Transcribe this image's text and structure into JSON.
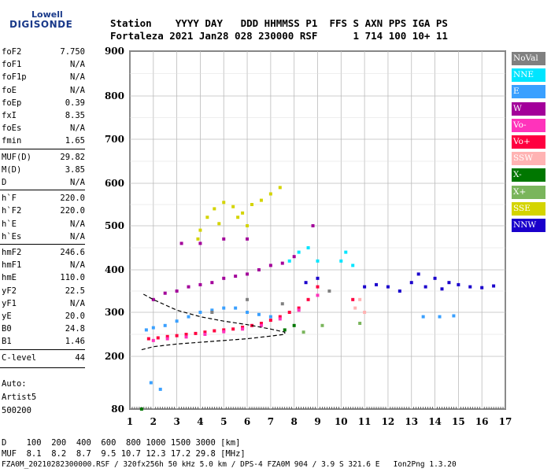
{
  "logo": {
    "top": "Lowell",
    "main": "DIGISONDE"
  },
  "header": {
    "line1": "Station    YYYY DAY   DDD HHMMSS P1  FFS S AXN PPS IGA PS",
    "line2": "Fortaleza 2021 Jan28 028 230000 RSF      1 714 100 10+ 11"
  },
  "params": [
    {
      "name": "foF2",
      "value": "7.750"
    },
    {
      "name": "foF1",
      "value": "N/A"
    },
    {
      "name": "foF1p",
      "value": "N/A"
    },
    {
      "name": "foE",
      "value": "N/A"
    },
    {
      "name": "foEp",
      "value": "0.39"
    },
    {
      "name": "fxI",
      "value": "8.35"
    },
    {
      "name": "foEs",
      "value": "N/A"
    },
    {
      "name": "fmin",
      "value": "1.65"
    },
    {
      "name": "MUF(D)",
      "value": "29.82"
    },
    {
      "name": "M(D)",
      "value": "3.85"
    },
    {
      "name": "D",
      "value": "N/A"
    },
    {
      "name": "h`F",
      "value": "220.0"
    },
    {
      "name": "h`F2",
      "value": "220.0"
    },
    {
      "name": "h`E",
      "value": "N/A"
    },
    {
      "name": "h`Es",
      "value": "N/A"
    },
    {
      "name": "hmF2",
      "value": "246.6"
    },
    {
      "name": "hmF1",
      "value": "N/A"
    },
    {
      "name": "hmE",
      "value": "110.0"
    },
    {
      "name": "yF2",
      "value": "22.5"
    },
    {
      "name": "yF1",
      "value": "N/A"
    },
    {
      "name": "yE",
      "value": "20.0"
    },
    {
      "name": "B0",
      "value": "24.8"
    },
    {
      "name": "B1",
      "value": "1.46"
    },
    {
      "name": "C-level",
      "value": "44"
    }
  ],
  "autoscale": {
    "line1": "Auto:",
    "line2": "Artist5",
    "line3": "500200"
  },
  "legend": [
    {
      "label": "NoVal",
      "color": "#808080"
    },
    {
      "label": "NNE",
      "color": "#00e5ff"
    },
    {
      "label": "E",
      "color": "#3aa0ff"
    },
    {
      "label": "W",
      "color": "#a3009a"
    },
    {
      "label": "Vo-",
      "color": "#ff33bb"
    },
    {
      "label": "Vo+",
      "color": "#ff0040"
    },
    {
      "label": "SSW",
      "color": "#ffb3b3"
    },
    {
      "label": "X-",
      "color": "#007700"
    },
    {
      "label": "X+",
      "color": "#7ab55c"
    },
    {
      "label": "SSE",
      "color": "#d4d400"
    },
    {
      "label": "NNW",
      "color": "#1a00cc"
    }
  ],
  "footer": {
    "d_line": "D    100  200  400  600  800 1000 1500 3000 [km]",
    "muf_line": "MUF  8.1  8.2  8.7  9.5 10.7 12.3 17.2 29.8 [MHz]",
    "file_line": "FZA0M_20210282300000.RSF / 320fx256h 50 kHz 5.0 km / DPS-4 FZA0M 904 / 3.9 S 321.6 E   Ion2Png 1.3.20"
  },
  "chart_data": {
    "type": "scatter",
    "title": "",
    "xlabel": "",
    "ylabel": "",
    "xlim": [
      1,
      17
    ],
    "ylim": [
      80,
      900
    ],
    "x_ticks": [
      1,
      2,
      3,
      4,
      5,
      6,
      7,
      8,
      9,
      10,
      11,
      12,
      13,
      14,
      15,
      16,
      17
    ],
    "y_ticks": [
      80,
      200,
      300,
      400,
      500,
      600,
      700,
      800,
      900
    ],
    "series": [
      {
        "name": "SSE",
        "color": "#d4d400",
        "points": [
          [
            4.0,
            490
          ],
          [
            4.3,
            520
          ],
          [
            4.6,
            540
          ],
          [
            5.0,
            555
          ],
          [
            5.4,
            545
          ],
          [
            5.8,
            530
          ],
          [
            6.2,
            550
          ],
          [
            6.6,
            560
          ],
          [
            7.0,
            575
          ],
          [
            7.4,
            590
          ],
          [
            3.9,
            470
          ],
          [
            4.8,
            505
          ],
          [
            5.6,
            520
          ],
          [
            6.0,
            500
          ]
        ]
      },
      {
        "name": "W",
        "color": "#a3009a",
        "points": [
          [
            2.0,
            330
          ],
          [
            2.5,
            345
          ],
          [
            3.0,
            350
          ],
          [
            3.5,
            360
          ],
          [
            4.0,
            365
          ],
          [
            4.5,
            370
          ],
          [
            5.0,
            380
          ],
          [
            5.5,
            385
          ],
          [
            6.0,
            390
          ],
          [
            6.5,
            400
          ],
          [
            7.0,
            410
          ],
          [
            7.5,
            415
          ],
          [
            8.0,
            430
          ],
          [
            3.2,
            460
          ],
          [
            4.0,
            460
          ],
          [
            5.0,
            470
          ],
          [
            6.0,
            470
          ],
          [
            8.8,
            500
          ]
        ]
      },
      {
        "name": "E",
        "color": "#3aa0ff",
        "points": [
          [
            1.7,
            260
          ],
          [
            2.0,
            265
          ],
          [
            2.5,
            270
          ],
          [
            3.0,
            280
          ],
          [
            3.5,
            290
          ],
          [
            4.0,
            300
          ],
          [
            4.5,
            305
          ],
          [
            5.0,
            310
          ],
          [
            5.5,
            310
          ],
          [
            6.0,
            300
          ],
          [
            6.5,
            295
          ],
          [
            7.0,
            290
          ],
          [
            1.9,
            140
          ],
          [
            2.3,
            125
          ],
          [
            13.5,
            290
          ],
          [
            14.2,
            290
          ],
          [
            14.8,
            292
          ]
        ]
      },
      {
        "name": "NNE",
        "color": "#00e5ff",
        "points": [
          [
            7.8,
            420
          ],
          [
            8.2,
            440
          ],
          [
            8.6,
            450
          ],
          [
            9.0,
            420
          ],
          [
            10.0,
            420
          ],
          [
            10.2,
            440
          ],
          [
            10.5,
            410
          ]
        ]
      },
      {
        "name": "Vo+",
        "color": "#ff0040",
        "points": [
          [
            1.8,
            240
          ],
          [
            2.2,
            242
          ],
          [
            2.6,
            245
          ],
          [
            3.0,
            247
          ],
          [
            3.4,
            250
          ],
          [
            3.8,
            252
          ],
          [
            4.2,
            255
          ],
          [
            4.6,
            258
          ],
          [
            5.0,
            260
          ],
          [
            5.4,
            262
          ],
          [
            5.8,
            266
          ],
          [
            6.2,
            270
          ],
          [
            6.6,
            275
          ],
          [
            7.0,
            282
          ],
          [
            7.4,
            290
          ],
          [
            7.8,
            300
          ],
          [
            8.2,
            310
          ],
          [
            8.6,
            330
          ],
          [
            9.0,
            360
          ],
          [
            10.5,
            330
          ]
        ]
      },
      {
        "name": "Vo-",
        "color": "#ff33bb",
        "points": [
          [
            2.0,
            236
          ],
          [
            2.6,
            240
          ],
          [
            3.4,
            244
          ],
          [
            4.2,
            250
          ],
          [
            5.0,
            256
          ],
          [
            5.8,
            262
          ],
          [
            6.6,
            270
          ],
          [
            7.4,
            285
          ],
          [
            8.2,
            305
          ],
          [
            9.0,
            340
          ]
        ]
      },
      {
        "name": "SSW",
        "color": "#ffb3b3",
        "points": [
          [
            10.6,
            310
          ],
          [
            11.0,
            300
          ],
          [
            10.8,
            330
          ]
        ]
      },
      {
        "name": "X-",
        "color": "#007700",
        "points": [
          [
            1.5,
            80
          ],
          [
            7.6,
            260
          ],
          [
            8.0,
            270
          ]
        ]
      },
      {
        "name": "X+",
        "color": "#7ab55c",
        "points": [
          [
            8.4,
            255
          ],
          [
            9.2,
            270
          ],
          [
            10.8,
            275
          ]
        ]
      },
      {
        "name": "NNW",
        "color": "#1a00cc",
        "points": [
          [
            11.0,
            360
          ],
          [
            11.5,
            365
          ],
          [
            12.0,
            360
          ],
          [
            12.5,
            350
          ],
          [
            13.0,
            370
          ],
          [
            13.3,
            390
          ],
          [
            13.6,
            360
          ],
          [
            14.0,
            380
          ],
          [
            14.3,
            355
          ],
          [
            14.6,
            370
          ],
          [
            15.0,
            365
          ],
          [
            15.5,
            360
          ],
          [
            16.0,
            358
          ],
          [
            16.5,
            362
          ],
          [
            8.5,
            370
          ],
          [
            9.0,
            380
          ]
        ]
      },
      {
        "name": "NoVal",
        "color": "#808080",
        "points": [
          [
            4.5,
            300
          ],
          [
            6.0,
            330
          ],
          [
            7.5,
            320
          ],
          [
            9.5,
            350
          ]
        ]
      }
    ],
    "profile_curve": [
      [
        1.5,
        215
      ],
      [
        2.0,
        222
      ],
      [
        3.0,
        228
      ],
      [
        4.0,
        232
      ],
      [
        5.0,
        236
      ],
      [
        6.0,
        240
      ],
      [
        7.0,
        246
      ],
      [
        7.6,
        250
      ],
      [
        7.6,
        255
      ],
      [
        7.0,
        262
      ],
      [
        6.0,
        272
      ],
      [
        5.0,
        280
      ],
      [
        4.0,
        290
      ],
      [
        3.0,
        305
      ],
      [
        2.0,
        330
      ],
      [
        1.5,
        345
      ]
    ],
    "legend_position": "right"
  }
}
